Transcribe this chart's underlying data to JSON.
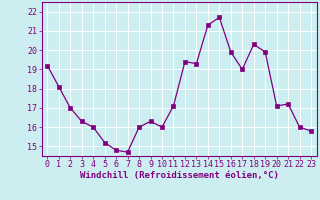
{
  "x": [
    0,
    1,
    2,
    3,
    4,
    5,
    6,
    7,
    8,
    9,
    10,
    11,
    12,
    13,
    14,
    15,
    16,
    17,
    18,
    19,
    20,
    21,
    22,
    23
  ],
  "y": [
    19.2,
    18.1,
    17.0,
    16.3,
    16.0,
    15.2,
    14.8,
    14.7,
    16.0,
    16.3,
    16.0,
    17.1,
    19.4,
    19.3,
    21.3,
    21.7,
    19.9,
    19.0,
    20.3,
    19.9,
    17.1,
    17.2,
    16.0,
    15.8
  ],
  "line_color": "#800080",
  "marker": "s",
  "marker_size": 2.5,
  "bg_color": "#cceef0",
  "grid_color": "#ffffff",
  "xlabel": "Windchill (Refroidissement éolien,°C)",
  "ylabel": "",
  "ylim": [
    14.5,
    22.5
  ],
  "xlim": [
    -0.5,
    23.5
  ],
  "yticks": [
    15,
    16,
    17,
    18,
    19,
    20,
    21,
    22
  ],
  "xticks": [
    0,
    1,
    2,
    3,
    4,
    5,
    6,
    7,
    8,
    9,
    10,
    11,
    12,
    13,
    14,
    15,
    16,
    17,
    18,
    19,
    20,
    21,
    22,
    23
  ],
  "tick_color": "#800080",
  "spine_color": "#800080",
  "label_fontsize": 6.5,
  "tick_fontsize": 6.0
}
